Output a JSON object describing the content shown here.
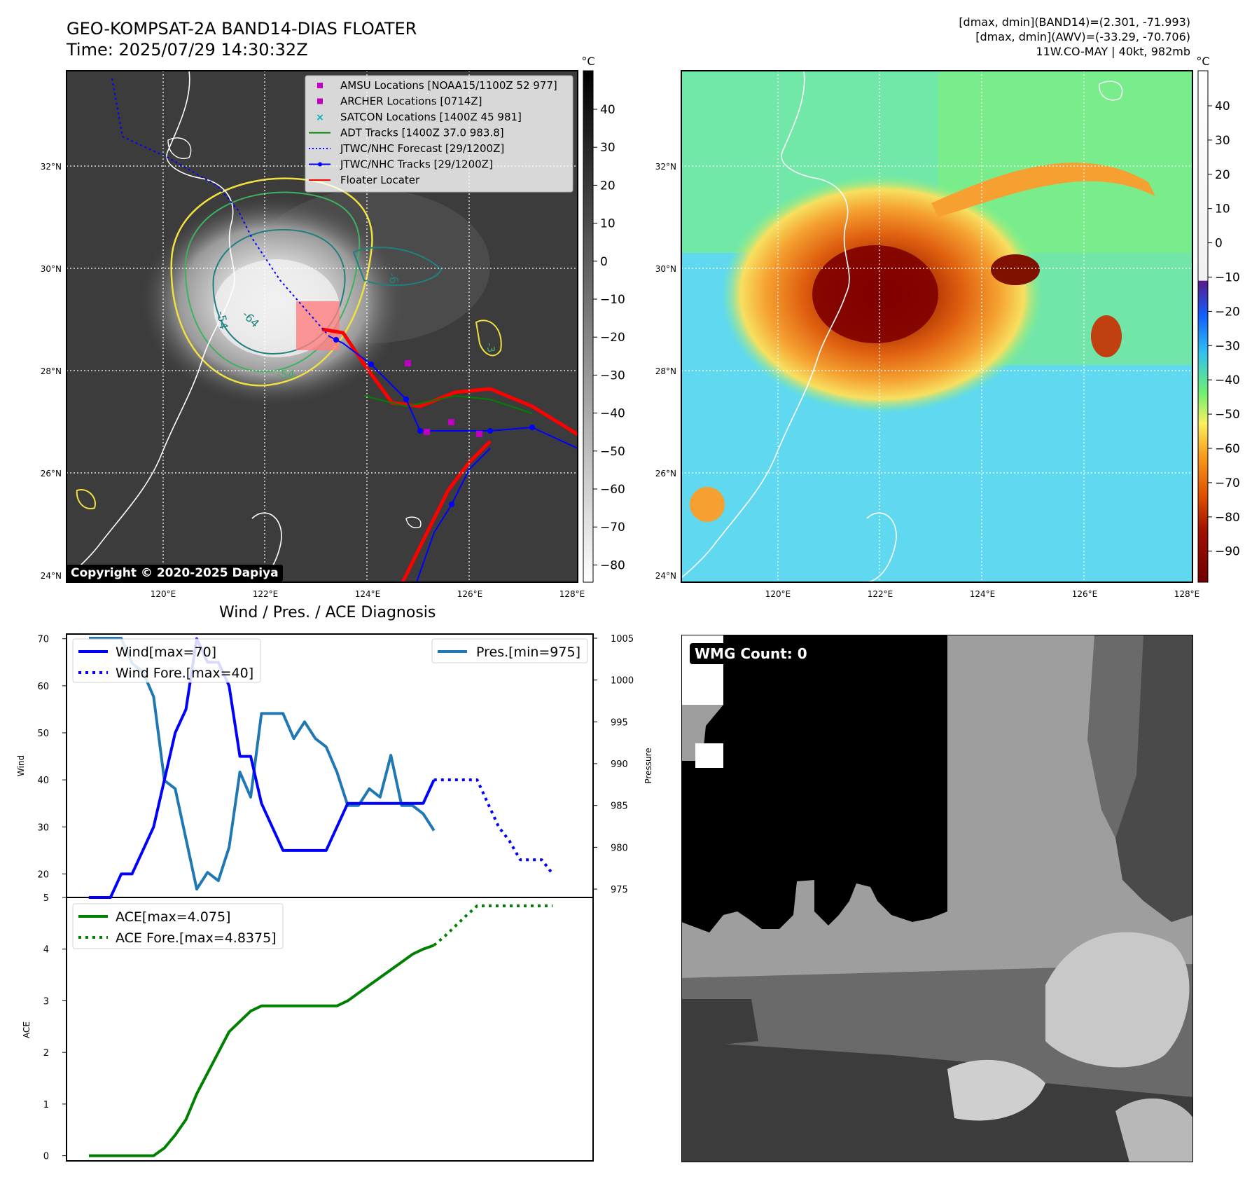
{
  "header": {
    "title_line1": "GEO-KOMPSAT-2A BAND14-DIAS FLOATER",
    "title_line2": "Time: 2025/07/29 14:30:32Z",
    "info_line1": "[dmax, dmin](BAND14)=(2.301, -71.993)",
    "info_line2": "[dmax, dmin](AWV)=(-33.29, -70.706)",
    "info_line3": "11W.CO-MAY | 40kt, 982mb"
  },
  "maps": {
    "lon_ticks": [
      "120°E",
      "122°E",
      "124°E",
      "126°E",
      "128°E"
    ],
    "lat_ticks": [
      "32°N",
      "30°N",
      "28°N",
      "26°N",
      "24°N"
    ],
    "copyright": "Copyright © 2020-2025 Dapiya",
    "contour_labels": [
      "-54",
      "-64",
      "-54",
      "-6",
      "-3"
    ],
    "legend": [
      {
        "label": "AMSU Locations [NOAA15/1100Z 52 977]",
        "kind": "square",
        "color": "#c000c0"
      },
      {
        "label": "ARCHER Locations [0714Z]",
        "kind": "square",
        "color": "#c000c0"
      },
      {
        "label": "SATCON Locations [1400Z 45 981]",
        "kind": "x",
        "color": "#00b0b0"
      },
      {
        "label": "ADT Tracks [1400Z 37.0 983.8]",
        "kind": "line",
        "color": "#008000"
      },
      {
        "label": "JTWC/NHC Forecast [29/1200Z]",
        "kind": "dotted",
        "color": "#0000ff"
      },
      {
        "label": "JTWC/NHC Tracks [29/1200Z]",
        "kind": "line-dot",
        "color": "#0000ff"
      },
      {
        "label": "Floater Locater",
        "kind": "line",
        "color": "#ff0000"
      }
    ]
  },
  "colorbars": {
    "ir": {
      "unit": "°C",
      "ticks": [
        "40",
        "30",
        "20",
        "10",
        "0",
        "−10",
        "−20",
        "−30",
        "−40",
        "−50",
        "−60",
        "−70",
        "−80"
      ]
    },
    "enh": {
      "unit": "°C",
      "ticks": [
        "40",
        "30",
        "20",
        "10",
        "0",
        "−10",
        "−20",
        "−30",
        "−40",
        "−50",
        "−60",
        "−70",
        "−80",
        "−90"
      ]
    }
  },
  "wmg": {
    "label": "WMG Count: 0"
  },
  "diagnosis": {
    "title": "Wind / Pres. / ACE Diagnosis"
  },
  "chart_data": [
    {
      "type": "line",
      "title": "Wind / Pres. / ACE Diagnosis",
      "ylabel": "Wind",
      "y2label": "Pressure",
      "ylim": [
        15,
        71
      ],
      "y2lim": [
        974,
        1005.5
      ],
      "yticks": [
        20,
        30,
        40,
        50,
        60,
        70
      ],
      "y2ticks": [
        975,
        980,
        985,
        990,
        995,
        1000,
        1005
      ],
      "series": [
        {
          "name": "Wind[max=70]",
          "axis": "left",
          "style": "solid",
          "color": "#0000ff",
          "x": [
            0,
            1,
            2,
            3,
            4,
            5,
            6,
            7,
            8,
            9,
            10,
            11,
            12,
            13,
            14,
            15,
            16,
            17,
            18,
            19,
            20,
            21,
            22,
            23,
            24,
            25,
            26,
            27,
            28,
            29,
            30,
            31,
            32
          ],
          "values": [
            15,
            15,
            15,
            20,
            20,
            25,
            30,
            40,
            50,
            55,
            70,
            65,
            65,
            60,
            45,
            45,
            35,
            30,
            25,
            25,
            25,
            25,
            25,
            30,
            35,
            35,
            35,
            35,
            35,
            35,
            35,
            35,
            40
          ]
        },
        {
          "name": "Wind Fore.[max=40]",
          "axis": "left",
          "style": "dotted",
          "color": "#0000ff",
          "x": [
            32,
            33,
            34,
            35,
            36,
            37,
            38,
            39,
            40,
            41,
            42,
            43
          ],
          "values": [
            40,
            40,
            40,
            40,
            40,
            35,
            30,
            27,
            23,
            23,
            23,
            20
          ]
        },
        {
          "name": "Pres.[min=975]",
          "axis": "right",
          "style": "solid",
          "color": "#1f77b4",
          "x": [
            0,
            1,
            2,
            3,
            4,
            5,
            6,
            7,
            8,
            9,
            10,
            11,
            12,
            13,
            14,
            15,
            16,
            17,
            18,
            19,
            20,
            21,
            22,
            23,
            24,
            25,
            26,
            27,
            28,
            29,
            30,
            31,
            32
          ],
          "values": [
            1005,
            1005,
            1005,
            1005,
            1002,
            1001,
            998,
            988,
            987,
            981,
            975,
            977,
            976,
            980,
            989,
            986,
            996,
            996,
            996,
            993,
            995,
            993,
            992,
            989,
            985,
            985,
            987,
            986,
            991,
            985,
            985,
            984,
            982
          ]
        }
      ]
    },
    {
      "type": "line",
      "ylabel": "ACE",
      "ylim": [
        -0.1,
        5.0
      ],
      "yticks": [
        0,
        1,
        2,
        3,
        4,
        5
      ],
      "series": [
        {
          "name": "ACE[max=4.075]",
          "style": "solid",
          "color": "#008000",
          "x": [
            0,
            1,
            2,
            3,
            4,
            5,
            6,
            7,
            8,
            9,
            10,
            11,
            12,
            13,
            14,
            15,
            16,
            17,
            18,
            19,
            20,
            21,
            22,
            23,
            24,
            25,
            26,
            27,
            28,
            29,
            30,
            31,
            32
          ],
          "values": [
            0,
            0,
            0,
            0,
            0,
            0,
            0,
            0.15,
            0.4,
            0.7,
            1.2,
            1.6,
            2.0,
            2.4,
            2.6,
            2.8,
            2.9,
            2.9,
            2.9,
            2.9,
            2.9,
            2.9,
            2.9,
            2.9,
            3.0,
            3.15,
            3.3,
            3.45,
            3.6,
            3.75,
            3.9,
            4.0,
            4.075
          ]
        },
        {
          "name": "ACE Fore.[max=4.8375]",
          "style": "dotted",
          "color": "#008000",
          "x": [
            32,
            33,
            34,
            35,
            36,
            37,
            38,
            39,
            40,
            41,
            42,
            43
          ],
          "values": [
            4.075,
            4.25,
            4.45,
            4.65,
            4.8375,
            4.8375,
            4.8375,
            4.8375,
            4.8375,
            4.8375,
            4.8375,
            4.8375
          ]
        }
      ]
    }
  ]
}
